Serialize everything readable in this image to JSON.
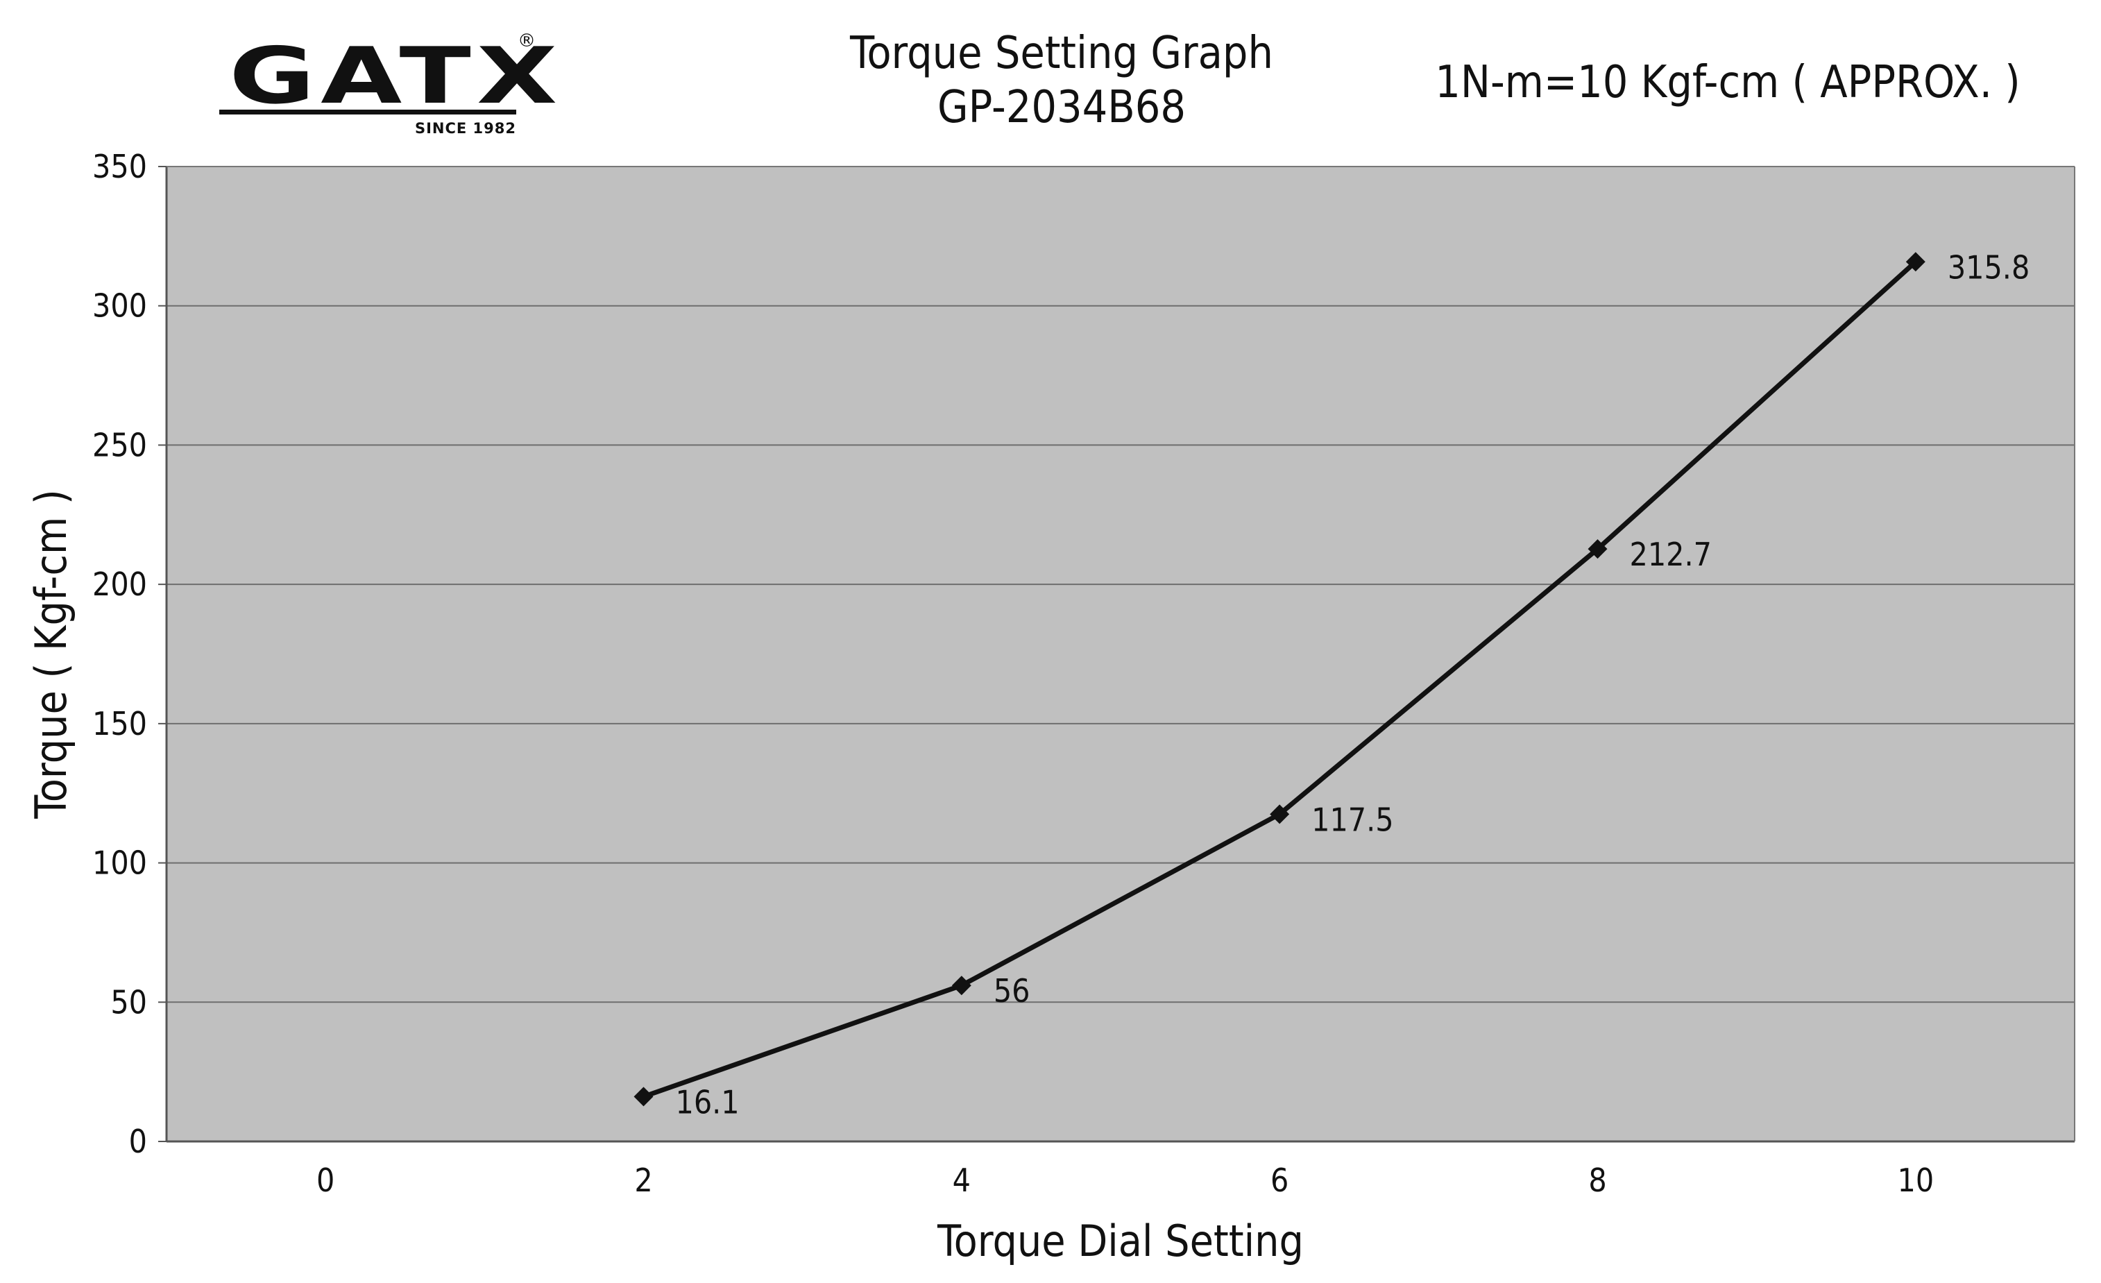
{
  "logo": {
    "word": "GATX",
    "since": "SINCE 1982",
    "registered": "®"
  },
  "chart_data": {
    "type": "line",
    "title": "Torque Setting Graph",
    "subtitle": "GP-2034B68",
    "annotation": "1N-m=10 Kgf-cm ( APPROX. )",
    "xlabel": "Torque Dial Setting",
    "ylabel": "Torque ( Kgf-cm )",
    "xticks": [
      "0",
      "2",
      "4",
      "6",
      "8",
      "10"
    ],
    "yticks": [
      "0",
      "50",
      "100",
      "150",
      "200",
      "250",
      "300",
      "350"
    ],
    "xlim": [
      -1,
      11
    ],
    "ylim": [
      0,
      350
    ],
    "grid": true,
    "plot_background": "#c0c0c0",
    "line_color": "#111111",
    "marker": "diamond",
    "series": [
      {
        "x": [
          2,
          4,
          6,
          8,
          10
        ],
        "y": [
          16.1,
          56,
          117.5,
          212.7,
          315.8
        ]
      }
    ],
    "data_labels": [
      "16.1",
      "56",
      "117.5",
      "212.7",
      "315.8"
    ]
  }
}
